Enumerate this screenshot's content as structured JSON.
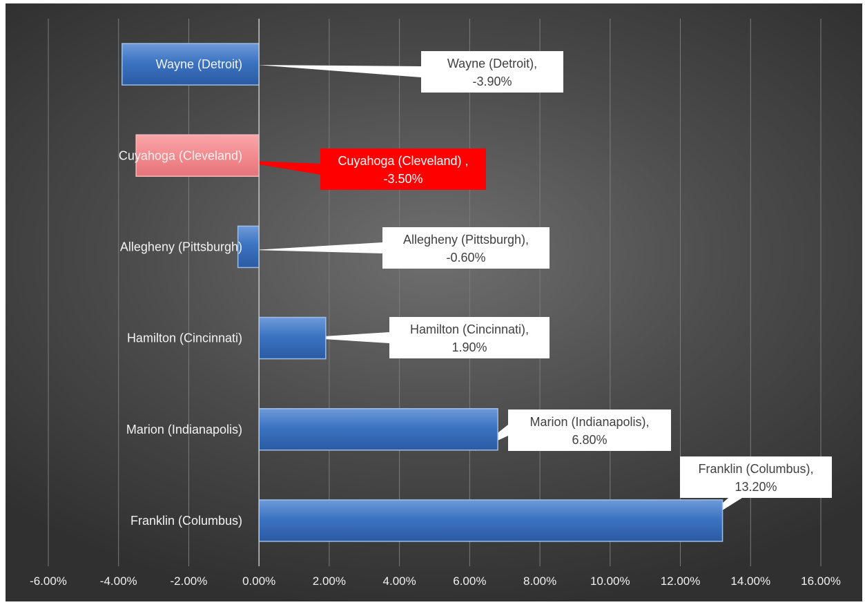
{
  "chart_data": {
    "type": "bar",
    "orientation": "horizontal",
    "categories": [
      "Wayne (Detroit)",
      "Cuyahoga (Cleveland)",
      "Allegheny (Pittsburgh)",
      "Hamilton (Cincinnati)",
      "Marion (Indianapolis)",
      "Franklin (Columbus)"
    ],
    "values": [
      -3.9,
      -3.5,
      -0.6,
      1.9,
      6.8,
      13.2
    ],
    "value_unit": "%",
    "data_labels": [
      [
        "Wayne (Detroit),",
        "-3.90%"
      ],
      [
        "Cuyahoga (Cleveland) ,",
        "-3.50%"
      ],
      [
        "Allegheny (Pittsburgh),",
        "-0.60%"
      ],
      [
        "Hamilton (Cincinnati),",
        "1.90%"
      ],
      [
        "Marion (Indianapolis),",
        "6.80%"
      ],
      [
        "Franklin (Columbus),",
        "13.20%"
      ]
    ],
    "highlighted_category": "Cuyahoga (Cleveland)",
    "x_ticks": [
      -6,
      -4,
      -2,
      0,
      2,
      4,
      6,
      8,
      10,
      12,
      14,
      16
    ],
    "x_tick_labels": [
      "-6.00%",
      "-4.00%",
      "-2.00%",
      "0.00%",
      "2.00%",
      "4.00%",
      "6.00%",
      "8.00%",
      "10.00%",
      "12.00%",
      "14.00%",
      "16.00%"
    ],
    "xlim": [
      -6,
      16
    ],
    "grid": "vertical",
    "title": "",
    "xlabel": "",
    "ylabel": "",
    "colors": {
      "bar": "#3b73c1",
      "bar_highlight": "#f48a8e",
      "callout_highlight": "#ff0000",
      "background": "#4a4a4a"
    }
  }
}
